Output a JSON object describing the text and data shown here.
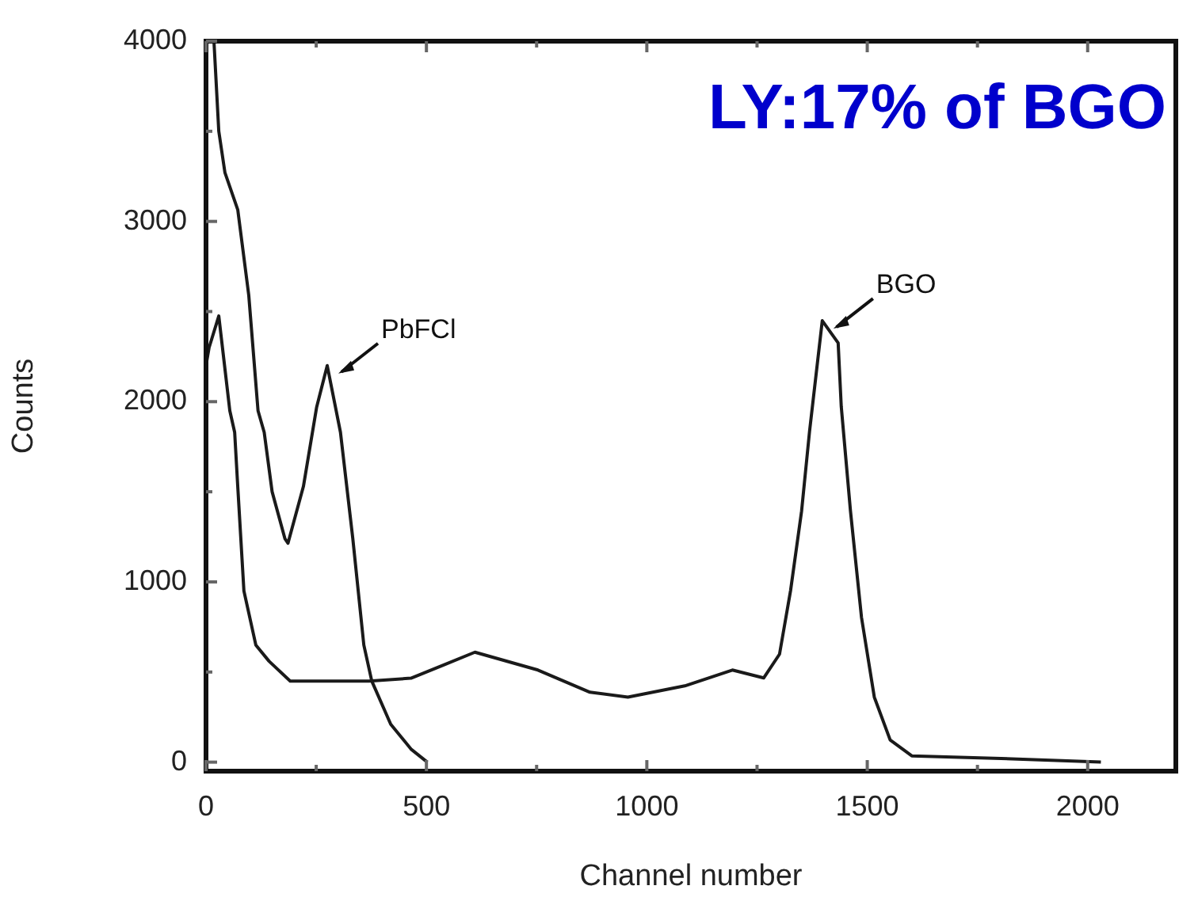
{
  "chart_data": {
    "type": "line",
    "title": "LY:17% of BGO",
    "xlabel": "Channel number",
    "ylabel": "Counts",
    "xlim": [
      0,
      2200
    ],
    "xticks": [
      0,
      {
        "value": 250,
        "label": null
      },
      500,
      {
        "value": 750,
        "label": null
      },
      1000,
      {
        "value": 1250,
        "label": null
      },
      1500,
      {
        "value": 1750,
        "label": null
      },
      2000
    ],
    "ylim": [
      -50,
      4000
    ],
    "yticks": [
      0,
      {
        "value": 500,
        "label": null
      },
      1000,
      {
        "value": 1500,
        "label": null
      },
      2000,
      {
        "value": 2500,
        "label": null
      },
      3000,
      {
        "value": 3500,
        "label": null
      },
      4000
    ],
    "grid": false,
    "legend": false,
    "marker": "none",
    "line_style": "solid",
    "series": [
      {
        "name": "PbFCl",
        "color": "#1a1a1a",
        "x": [
          18,
          29,
          43,
          72,
          97,
          118,
          132,
          150,
          179,
          186,
          221,
          251,
          275,
          305,
          333,
          358,
          376,
          419,
          466,
          502
        ],
        "values": [
          4000,
          3500,
          3270,
          3065,
          2590,
          1950,
          1830,
          1500,
          1240,
          1215,
          1530,
          1970,
          2200,
          1830,
          1240,
          650,
          450,
          210,
          70,
          0
        ]
      },
      {
        "name": "BGO",
        "color": "#1a1a1a",
        "x": [
          0,
          7,
          29,
          54,
          65,
          72,
          86,
          113,
          143,
          191,
          370,
          465,
          537,
          610,
          753,
          871,
          957,
          1086,
          1194,
          1265,
          1301,
          1326,
          1351,
          1369,
          1398,
          1434,
          1441,
          1462,
          1487,
          1516,
          1552,
          1601,
          1828,
          2030
        ],
        "values": [
          2200,
          2300,
          2475,
          1950,
          1830,
          1530,
          950,
          650,
          560,
          450,
          450,
          466,
          537,
          610,
          511,
          388,
          361,
          423,
          511,
          467,
          599,
          951,
          1392,
          1833,
          2449,
          2326,
          1974,
          1392,
          802,
          361,
          123,
          35,
          18,
          0
        ]
      }
    ]
  }
}
